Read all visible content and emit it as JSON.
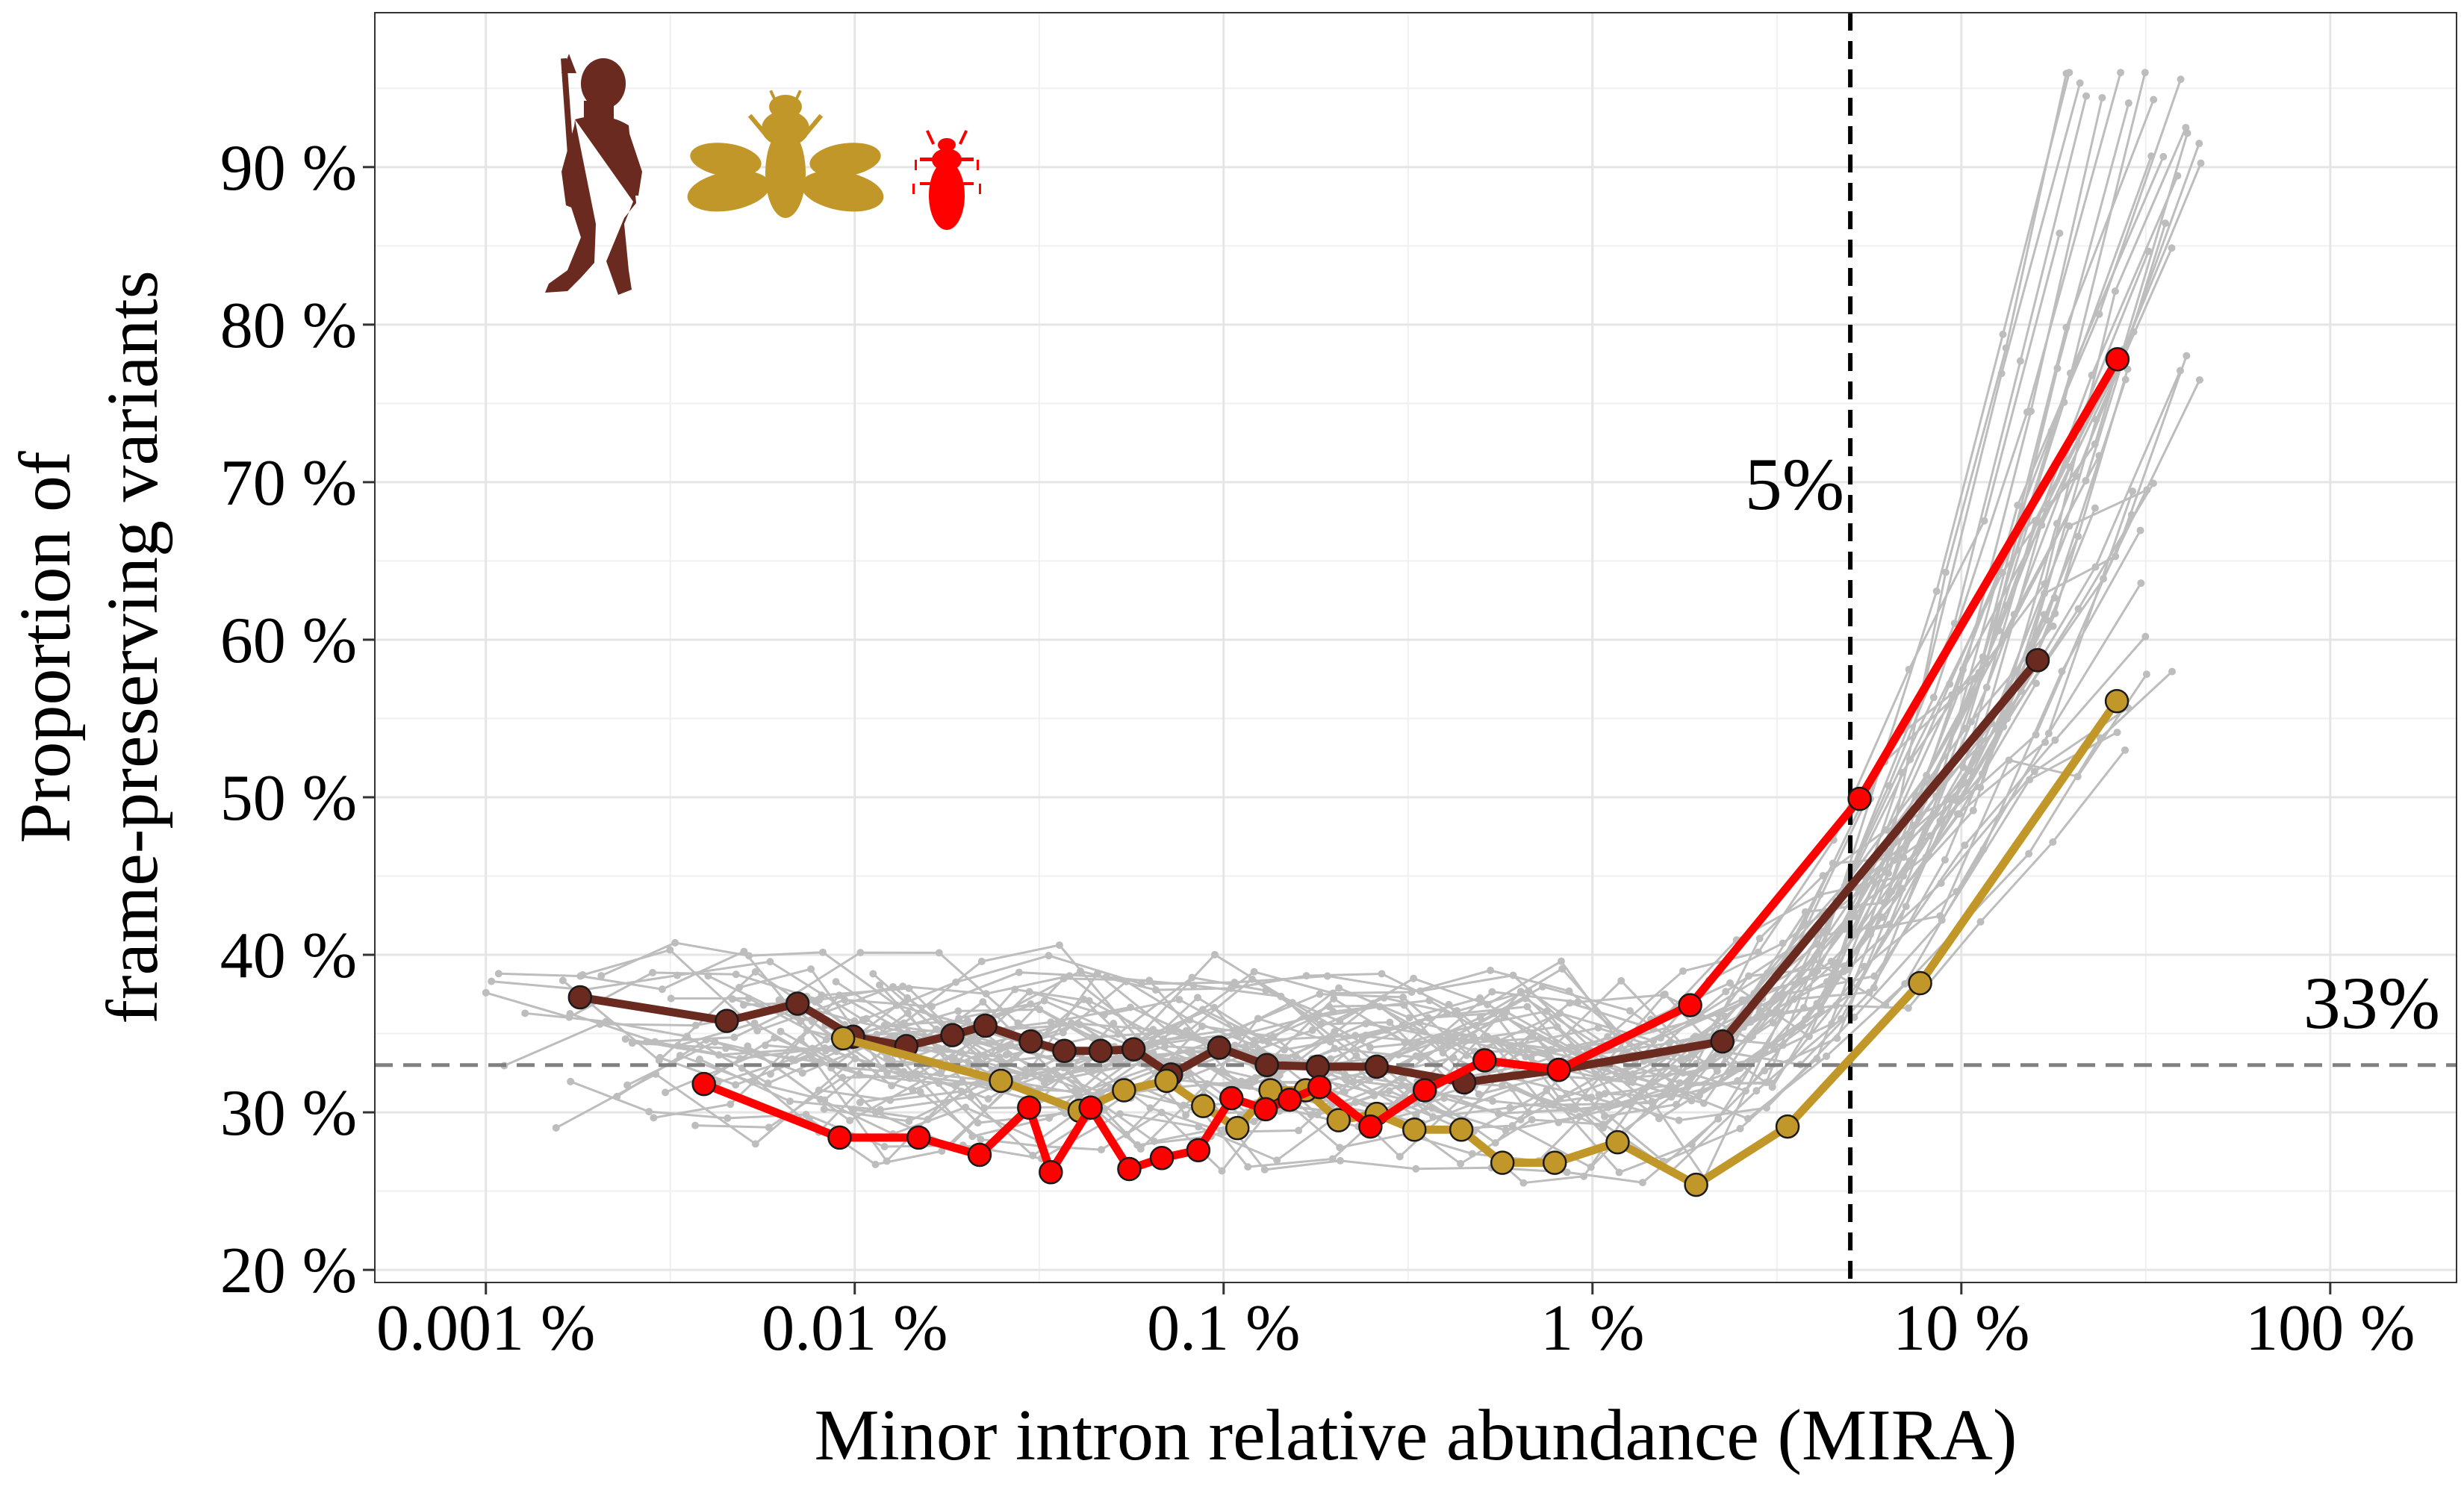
{
  "chart_data": {
    "type": "line",
    "title": "",
    "xlabel": "Minor intron relative abundance (MIRA)",
    "ylabel_lines": [
      "Proportion of",
      "frame-preserving variants"
    ],
    "x_scale": "log10",
    "xlim": [
      0.0005,
      220
    ],
    "ylim": [
      19.2,
      99.8
    ],
    "x_ticks": [
      0.001,
      0.01,
      0.1,
      1,
      10,
      100
    ],
    "x_tick_labels": [
      "0.001 %",
      "0.01 %",
      "0.1 %",
      "1 %",
      "10 %",
      "100 %"
    ],
    "y_ticks": [
      20,
      30,
      40,
      50,
      60,
      70,
      80,
      90
    ],
    "y_tick_labels": [
      "20 %",
      "30 %",
      "40 %",
      "50 %",
      "60 %",
      "70 %",
      "80 %",
      "90 %"
    ],
    "grid": true,
    "reference_lines": [
      {
        "orientation": "vertical",
        "x": 5,
        "label": "5%",
        "style": "dashed",
        "color": "#000000"
      },
      {
        "orientation": "horizontal",
        "y": 33,
        "label": "33%",
        "style": "dashed",
        "color": "#808080"
      }
    ],
    "icons": [
      {
        "name": "human-silhouette-icon",
        "color": "#6b2a1f"
      },
      {
        "name": "bee-silhouette-icon",
        "color": "#c2972a"
      },
      {
        "name": "fly-silhouette-icon",
        "color": "#ff0000"
      }
    ],
    "series": [
      {
        "color": "#6b2a1f",
        "x": [
          0.0018,
          0.0045,
          0.007,
          0.0099,
          0.0138,
          0.0184,
          0.0226,
          0.03,
          0.037,
          0.0464,
          0.057,
          0.072,
          0.0973,
          0.131,
          0.18,
          0.26,
          0.449,
          0.81,
          2.25,
          16.1
        ],
        "y": [
          37.3,
          35.8,
          36.9,
          34.8,
          34.2,
          34.9,
          35.5,
          34.5,
          33.9,
          33.9,
          34.0,
          32.4,
          34.1,
          33.0,
          32.9,
          32.9,
          31.9,
          32.7,
          34.5,
          58.7
        ]
      },
      {
        "color": "#c2972a",
        "x": [
          0.0093,
          0.0249,
          0.0407,
          0.0537,
          0.07,
          0.088,
          0.109,
          0.134,
          0.167,
          0.205,
          0.26,
          0.329,
          0.441,
          0.57,
          0.79,
          1.17,
          1.91,
          3.38,
          7.73,
          26.4
        ],
        "y": [
          34.7,
          32.0,
          30.1,
          31.4,
          32.0,
          30.4,
          29.0,
          31.4,
          31.4,
          29.5,
          29.9,
          28.9,
          28.9,
          26.8,
          26.8,
          28.1,
          25.4,
          29.1,
          38.2,
          56.1
        ]
      },
      {
        "color": "#ff0000",
        "x": [
          0.0039,
          0.0091,
          0.0149,
          0.0218,
          0.0297,
          0.034,
          0.0436,
          0.0555,
          0.068,
          0.0854,
          0.105,
          0.13,
          0.151,
          0.182,
          0.25,
          0.351,
          0.51,
          0.81,
          1.84,
          5.3,
          26.5
        ],
        "y": [
          31.8,
          28.4,
          28.4,
          27.3,
          30.3,
          26.2,
          30.3,
          26.4,
          27.1,
          27.6,
          30.9,
          30.2,
          30.8,
          31.6,
          29.1,
          31.4,
          33.3,
          32.7,
          36.8,
          49.9,
          77.8
        ]
      }
    ],
    "background_series_count": 50,
    "background_series_color": "#bdbdbd"
  }
}
